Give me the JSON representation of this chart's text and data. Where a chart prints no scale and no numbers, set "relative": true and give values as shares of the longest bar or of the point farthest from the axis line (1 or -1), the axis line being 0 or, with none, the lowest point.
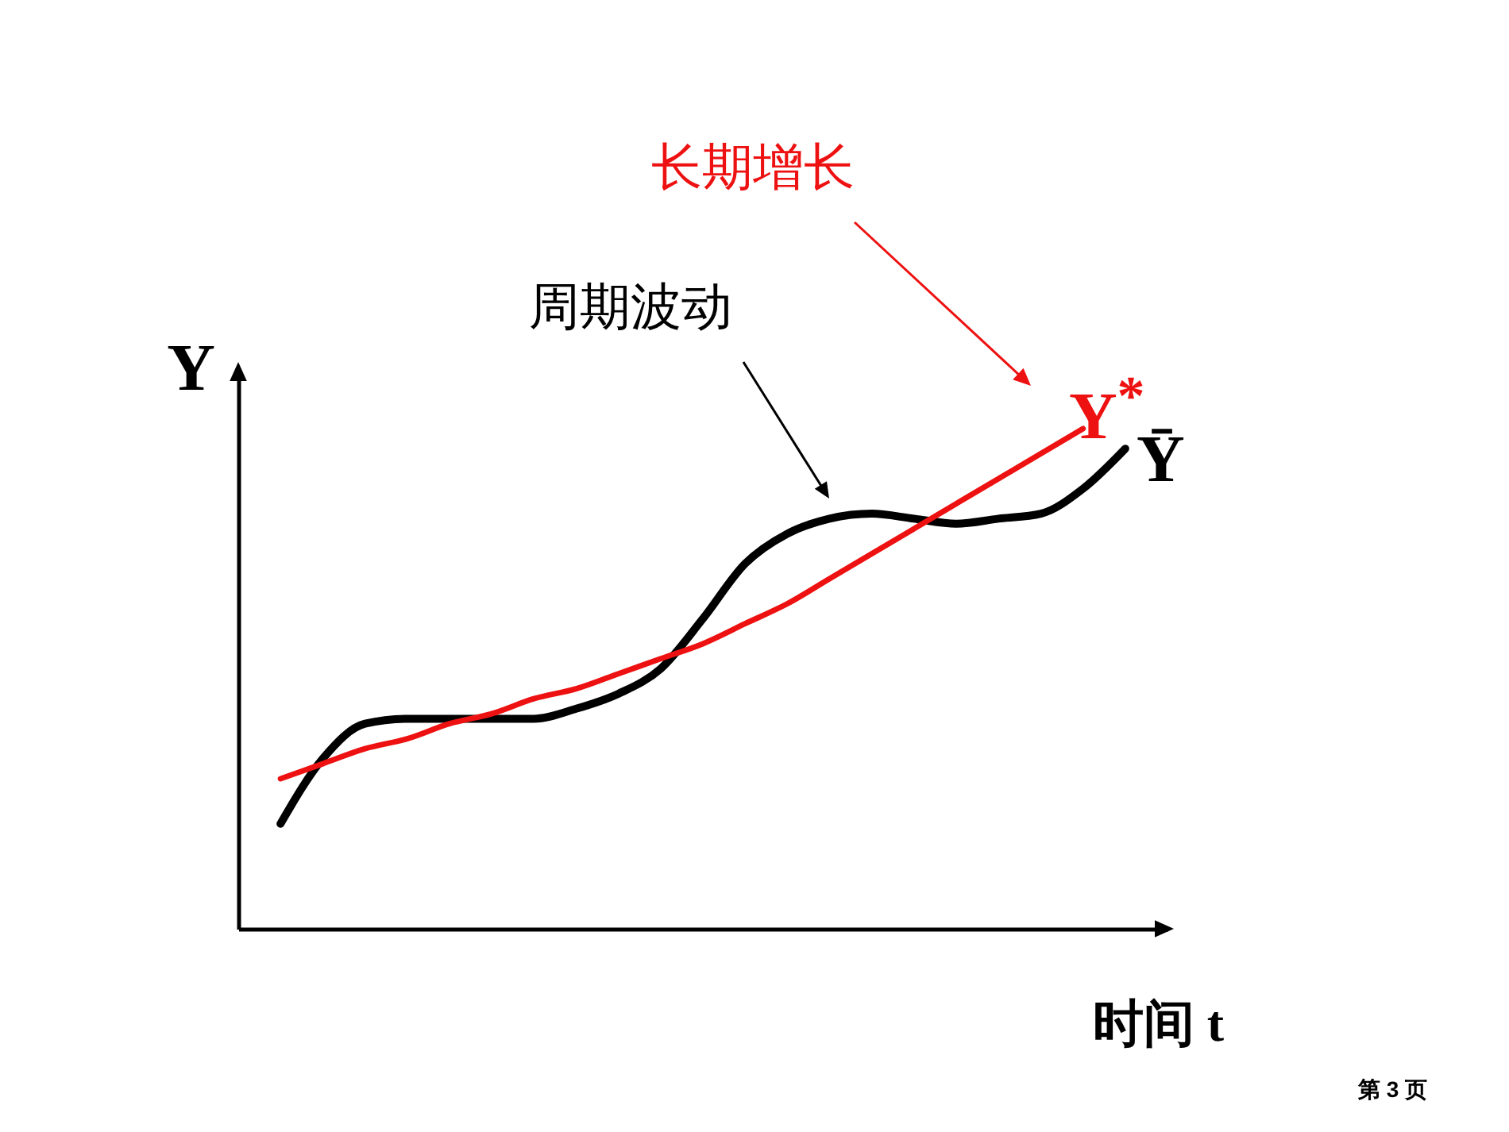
{
  "chart_data": {
    "type": "line",
    "relative": true,
    "xlabel": "时间 t",
    "ylabel": "Y",
    "categories": [
      null,
      null,
      null,
      null,
      null,
      null,
      null,
      null,
      null,
      null,
      null,
      null,
      null,
      null,
      null,
      null,
      null,
      null,
      null,
      null,
      null
    ],
    "series": [
      {
        "name": "Ȳ",
        "color": "#000000",
        "values": [
          0.21,
          0.34,
          0.41,
          0.42,
          0.42,
          0.42,
          0.42,
          0.44,
          0.47,
          0.52,
          0.62,
          0.73,
          0.79,
          0.82,
          0.83,
          0.82,
          0.81,
          0.82,
          0.83,
          0.88,
          0.96
        ]
      },
      {
        "name": "Y$^{*}$",
        "color": "#ee1111",
        "values": [
          0.3,
          0.33,
          0.36,
          0.38,
          0.41,
          0.43,
          0.46,
          0.48,
          0.51,
          0.54,
          0.57,
          0.61,
          0.65,
          0.7,
          0.75,
          0.8,
          0.85,
          0.9,
          0.95,
          1,
          null
        ]
      }
    ],
    "annotations": [
      "周期波动",
      "长期增长",
      "第 3 页"
    ],
    "grid": false,
    "marker": "none",
    "line_style": "solid"
  }
}
